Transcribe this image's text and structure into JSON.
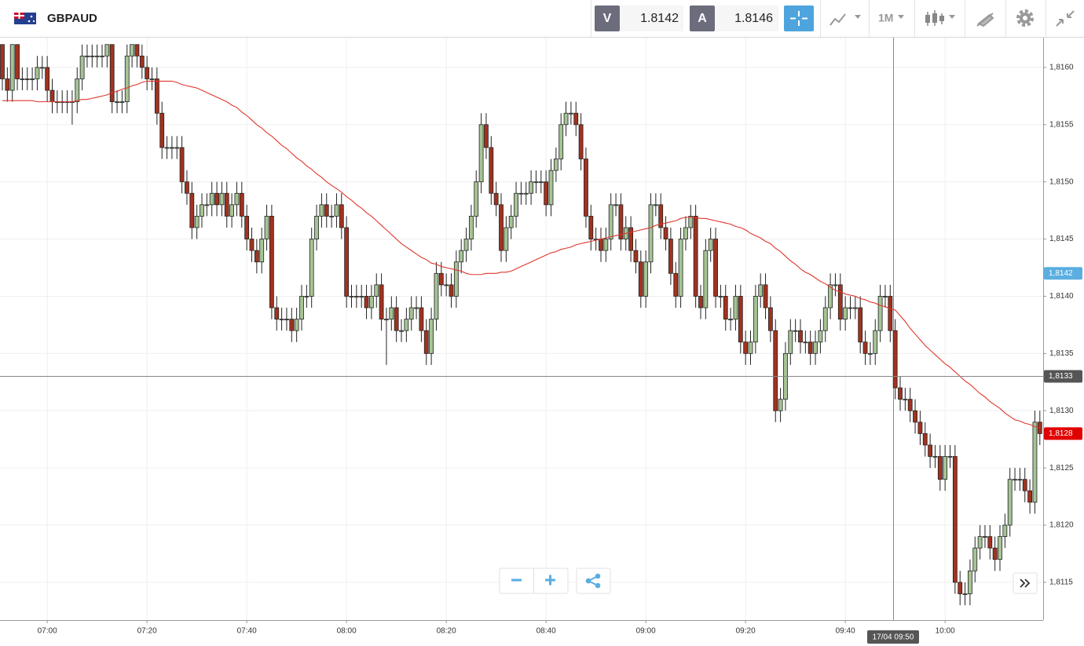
{
  "header": {
    "symbol": "GBPAUD",
    "bid_label": "V",
    "bid": 1.8142,
    "ask_label": "A",
    "ask": 1.8146,
    "timeframe": "1M"
  },
  "chart_data": {
    "type": "candlestick",
    "categories": [
      null,
      null,
      null,
      null,
      null,
      null,
      null,
      null,
      null,
      "07:00",
      null,
      null,
      null,
      null,
      null,
      null,
      null,
      null,
      null,
      null,
      null,
      null,
      null,
      null,
      null,
      null,
      null,
      null,
      null,
      "07:20",
      null,
      null,
      null,
      null,
      null,
      null,
      null,
      null,
      null,
      null,
      null,
      null,
      null,
      null,
      null,
      null,
      null,
      null,
      null,
      "07:40",
      null,
      null,
      null,
      null,
      null,
      null,
      null,
      null,
      null,
      null,
      null,
      null,
      null,
      null,
      null,
      null,
      null,
      null,
      null,
      "08:00",
      null,
      null,
      null,
      null,
      null,
      null,
      null,
      null,
      null,
      null,
      null,
      null,
      null,
      null,
      null,
      null,
      null,
      null,
      null,
      "08:20",
      null,
      null,
      null,
      null,
      null,
      null,
      null,
      null,
      null,
      null,
      null,
      null,
      null,
      null,
      null,
      null,
      null,
      null,
      null,
      "08:40",
      null,
      null,
      null,
      null,
      null,
      null,
      null,
      null,
      null,
      null,
      null,
      null,
      null,
      null,
      null,
      null,
      null,
      null,
      null,
      "09:00",
      null,
      null,
      null,
      null,
      null,
      null,
      null,
      null,
      null,
      null,
      null,
      null,
      null,
      null,
      null,
      null,
      null,
      null,
      null,
      "09:20",
      null,
      null,
      null,
      null,
      null,
      null,
      null,
      null,
      null,
      null,
      null,
      null,
      null,
      null,
      null,
      null,
      null,
      null,
      null,
      "09:40",
      null,
      null,
      null,
      null,
      null,
      null,
      null,
      null,
      null,
      null,
      null,
      null,
      null,
      null,
      null,
      null,
      null,
      null,
      null,
      "10:00",
      null,
      null,
      null,
      null,
      null,
      null,
      null,
      null,
      null,
      null,
      null,
      null,
      null,
      null,
      null,
      null,
      null,
      null,
      null
    ],
    "open": [
      1.8162,
      1.8159,
      1.8158,
      1.8162,
      1.8159,
      1.8159,
      1.8159,
      1.8159,
      1.816,
      1.816,
      1.8158,
      1.8157,
      1.8157,
      1.8157,
      1.8157,
      1.8157,
      1.8159,
      1.8161,
      1.8161,
      1.8161,
      1.8161,
      1.8161,
      1.8162,
      1.8157,
      1.8157,
      1.8157,
      1.8161,
      1.8162,
      1.8161,
      1.816,
      1.8159,
      1.8159,
      1.8156,
      1.8153,
      1.8153,
      1.8153,
      1.8153,
      1.815,
      1.8149,
      1.8146,
      1.8147,
      1.8148,
      1.8148,
      1.8149,
      1.8148,
      1.8149,
      1.8147,
      1.8148,
      1.8149,
      1.8147,
      1.8145,
      1.8144,
      1.8143,
      1.8145,
      1.8147,
      1.8139,
      1.8138,
      1.8138,
      1.8138,
      1.8137,
      1.8138,
      1.814,
      1.814,
      1.8145,
      1.8147,
      1.8148,
      1.8147,
      1.8147,
      1.8148,
      1.8146,
      1.814,
      1.814,
      1.814,
      1.814,
      1.8139,
      1.814,
      1.8141,
      1.8138,
      1.8138,
      1.8139,
      1.8137,
      1.8137,
      1.8138,
      1.8139,
      1.8139,
      1.8137,
      1.8135,
      1.8138,
      1.8142,
      1.8141,
      1.8141,
      1.814,
      1.8143,
      1.8144,
      1.8145,
      1.8147,
      1.815,
      1.8155,
      1.8153,
      1.8149,
      1.8148,
      1.8144,
      1.8146,
      1.8147,
      1.8149,
      1.8149,
      1.8149,
      1.815,
      1.815,
      1.815,
      1.8148,
      1.8151,
      1.8152,
      1.8155,
      1.8156,
      1.8156,
      1.8155,
      1.8152,
      1.8147,
      1.8145,
      1.8145,
      1.8144,
      1.8145,
      1.8148,
      1.8148,
      1.8145,
      1.8146,
      1.8144,
      1.8143,
      1.814,
      1.8143,
      1.8148,
      1.8148,
      1.8146,
      1.8145,
      1.8142,
      1.814,
      1.8145,
      1.8146,
      1.8147,
      1.814,
      1.8139,
      1.8144,
      1.8145,
      1.814,
      1.814,
      1.8138,
      1.8138,
      1.814,
      1.8136,
      1.8135,
      1.8136,
      1.814,
      1.8141,
      1.8139,
      1.8137,
      1.813,
      1.8131,
      1.8135,
      1.8137,
      1.8137,
      1.8136,
      1.8136,
      1.8135,
      1.8136,
      1.8137,
      1.8139,
      1.8141,
      1.8141,
      1.8138,
      1.8139,
      1.8139,
      1.8139,
      1.8136,
      1.8135,
      1.8135,
      1.8137,
      1.814,
      1.814,
      1.8137,
      1.8132,
      1.8131,
      1.8131,
      1.813,
      1.8129,
      1.8128,
      1.8127,
      1.8126,
      1.8126,
      1.8124,
      1.8126,
      1.8126,
      1.8115,
      1.8114,
      1.8114,
      1.8116,
      1.8118,
      1.8119,
      1.8119,
      1.8118,
      1.8117,
      1.8119,
      1.812,
      1.8124,
      1.8124,
      1.8124,
      1.8123,
      1.8122,
      1.8129
    ],
    "high": [
      1.8162,
      1.816,
      1.8162,
      1.8162,
      1.816,
      1.816,
      1.816,
      1.8161,
      1.8161,
      1.8161,
      1.8159,
      1.8158,
      1.8158,
      1.8158,
      1.8158,
      1.816,
      1.8162,
      1.8162,
      1.8162,
      1.8162,
      1.8162,
      1.8162,
      1.8162,
      1.8158,
      1.8158,
      1.8162,
      1.8162,
      1.8162,
      1.8162,
      1.8161,
      1.816,
      1.816,
      1.8157,
      1.8154,
      1.8154,
      1.8154,
      1.8154,
      1.8151,
      1.815,
      1.8148,
      1.8149,
      1.8149,
      1.815,
      1.815,
      1.815,
      1.815,
      1.8149,
      1.815,
      1.815,
      1.8148,
      1.8146,
      1.8145,
      1.8146,
      1.8148,
      1.8148,
      1.814,
      1.8139,
      1.8139,
      1.8139,
      1.8139,
      1.8141,
      1.8141,
      1.8146,
      1.8148,
      1.8149,
      1.8149,
      1.8148,
      1.8149,
      1.8149,
      1.8147,
      1.8141,
      1.8141,
      1.8141,
      1.8141,
      1.8141,
      1.8142,
      1.8142,
      1.8139,
      1.814,
      1.814,
      1.8138,
      1.8139,
      1.814,
      1.814,
      1.814,
      1.8138,
      1.8139,
      1.8143,
      1.8143,
      1.8142,
      1.8142,
      1.8144,
      1.8145,
      1.8146,
      1.8148,
      1.8151,
      1.8156,
      1.8156,
      1.8154,
      1.815,
      1.8149,
      1.8147,
      1.8148,
      1.815,
      1.815,
      1.815,
      1.8151,
      1.8151,
      1.8151,
      1.8151,
      1.8152,
      1.8153,
      1.8156,
      1.8157,
      1.8157,
      1.8157,
      1.8156,
      1.8153,
      1.8148,
      1.8146,
      1.8146,
      1.8146,
      1.8149,
      1.8149,
      1.8149,
      1.8147,
      1.8147,
      1.8145,
      1.8144,
      1.8144,
      1.8149,
      1.8149,
      1.8149,
      1.8147,
      1.8146,
      1.8143,
      1.8146,
      1.8147,
      1.8148,
      1.8148,
      1.8141,
      1.8145,
      1.8146,
      1.8146,
      1.8141,
      1.8141,
      1.8139,
      1.8141,
      1.8141,
      1.8137,
      1.8137,
      1.8141,
      1.8142,
      1.8142,
      1.814,
      1.8138,
      1.8132,
      1.8136,
      1.8138,
      1.8138,
      1.8138,
      1.8137,
      1.8137,
      1.8137,
      1.8138,
      1.814,
      1.8142,
      1.8142,
      1.8142,
      1.814,
      1.814,
      1.814,
      1.814,
      1.8137,
      1.8136,
      1.8138,
      1.8141,
      1.8141,
      1.8141,
      1.8138,
      1.8133,
      1.8132,
      1.8132,
      1.8131,
      1.813,
      1.8129,
      1.8128,
      1.8127,
      1.8127,
      1.8127,
      1.8127,
      1.8127,
      1.8116,
      1.8115,
      1.8117,
      1.8119,
      1.812,
      1.812,
      1.812,
      1.8119,
      1.812,
      1.8121,
      1.8125,
      1.8125,
      1.8125,
      1.8125,
      1.8124,
      1.813,
      1.813
    ],
    "low": [
      1.8158,
      1.8157,
      1.8157,
      1.8158,
      1.8158,
      1.8158,
      1.8158,
      1.8158,
      1.8159,
      1.8157,
      1.8156,
      1.8156,
      1.8156,
      1.8156,
      1.8155,
      1.8156,
      1.8158,
      1.816,
      1.816,
      1.816,
      1.816,
      1.816,
      1.8156,
      1.8156,
      1.8156,
      1.8156,
      1.816,
      1.816,
      1.8159,
      1.8158,
      1.8158,
      1.8155,
      1.8152,
      1.8152,
      1.8152,
      1.8152,
      1.8149,
      1.8148,
      1.8145,
      1.8145,
      1.8146,
      1.8147,
      1.8147,
      1.8147,
      1.8147,
      1.8146,
      1.8146,
      1.8147,
      1.8146,
      1.8144,
      1.8143,
      1.8142,
      1.8142,
      1.8144,
      1.8138,
      1.8137,
      1.8137,
      1.8137,
      1.8136,
      1.8136,
      1.8137,
      1.8139,
      1.8139,
      1.8144,
      1.8146,
      1.8146,
      1.8146,
      1.8146,
      1.8145,
      1.8139,
      1.8139,
      1.8139,
      1.8139,
      1.8138,
      1.8138,
      1.8139,
      1.8137,
      1.8134,
      1.8137,
      1.8136,
      1.8136,
      1.8136,
      1.8137,
      1.8138,
      1.8136,
      1.8134,
      1.8134,
      1.8137,
      1.814,
      1.814,
      1.8139,
      1.8139,
      1.8142,
      1.8143,
      1.8144,
      1.8146,
      1.8149,
      1.8152,
      1.8148,
      1.8147,
      1.8143,
      1.8143,
      1.8145,
      1.8146,
      1.8148,
      1.8148,
      1.8148,
      1.8149,
      1.8149,
      1.8147,
      1.8147,
      1.815,
      1.8151,
      1.8154,
      1.8155,
      1.8154,
      1.8151,
      1.8146,
      1.8144,
      1.8144,
      1.8143,
      1.8143,
      1.8144,
      1.8147,
      1.8144,
      1.8144,
      1.8143,
      1.8142,
      1.8139,
      1.8139,
      1.8142,
      1.8147,
      1.8145,
      1.8144,
      1.8141,
      1.8139,
      1.8139,
      1.8144,
      1.8145,
      1.8139,
      1.8138,
      1.8138,
      1.8143,
      1.8139,
      1.8139,
      1.8137,
      1.8137,
      1.8137,
      1.8135,
      1.8134,
      1.8134,
      1.8135,
      1.8139,
      1.8138,
      1.8136,
      1.8129,
      1.8129,
      1.813,
      1.8134,
      1.8136,
      1.8135,
      1.8135,
      1.8134,
      1.8134,
      1.8135,
      1.8136,
      1.8138,
      1.814,
      1.8137,
      1.8137,
      1.8138,
      1.8138,
      1.8135,
      1.8134,
      1.8134,
      1.8134,
      1.8136,
      1.8139,
      1.8136,
      1.8131,
      1.813,
      1.813,
      1.8129,
      1.8128,
      1.8127,
      1.8126,
      1.8125,
      1.8125,
      1.8123,
      1.8123,
      1.8125,
      1.8114,
      1.8113,
      1.8113,
      1.8113,
      1.8115,
      1.8117,
      1.8118,
      1.8117,
      1.8116,
      1.8116,
      1.8118,
      1.8119,
      1.8123,
      1.8123,
      1.8122,
      1.8121,
      1.8121,
      1.8127
    ],
    "close": [
      1.8159,
      1.8158,
      1.8162,
      1.8159,
      1.8159,
      1.8159,
      1.8159,
      1.816,
      1.816,
      1.8158,
      1.8157,
      1.8157,
      1.8157,
      1.8157,
      1.8157,
      1.8159,
      1.8161,
      1.8161,
      1.8161,
      1.8161,
      1.8161,
      1.8162,
      1.8157,
      1.8157,
      1.8157,
      1.8161,
      1.8162,
      1.8161,
      1.816,
      1.8159,
      1.8159,
      1.8156,
      1.8153,
      1.8153,
      1.8153,
      1.8153,
      1.815,
      1.8149,
      1.8146,
      1.8147,
      1.8148,
      1.8148,
      1.8149,
      1.8148,
      1.8149,
      1.8147,
      1.8148,
      1.8149,
      1.8147,
      1.8145,
      1.8144,
      1.8143,
      1.8145,
      1.8147,
      1.8139,
      1.8138,
      1.8138,
      1.8138,
      1.8137,
      1.8138,
      1.814,
      1.814,
      1.8145,
      1.8147,
      1.8148,
      1.8147,
      1.8147,
      1.8148,
      1.8146,
      1.814,
      1.814,
      1.814,
      1.814,
      1.8139,
      1.814,
      1.8141,
      1.8138,
      1.8138,
      1.8139,
      1.8137,
      1.8137,
      1.8138,
      1.8139,
      1.8139,
      1.8137,
      1.8135,
      1.8138,
      1.8142,
      1.8141,
      1.8141,
      1.814,
      1.8143,
      1.8144,
      1.8145,
      1.8147,
      1.815,
      1.8155,
      1.8153,
      1.8149,
      1.8148,
      1.8144,
      1.8146,
      1.8147,
      1.8149,
      1.8149,
      1.8149,
      1.815,
      1.815,
      1.815,
      1.8148,
      1.8151,
      1.8152,
      1.8155,
      1.8156,
      1.8156,
      1.8155,
      1.8152,
      1.8147,
      1.8145,
      1.8145,
      1.8144,
      1.8145,
      1.8148,
      1.8148,
      1.8145,
      1.8146,
      1.8144,
      1.8143,
      1.814,
      1.8143,
      1.8148,
      1.8148,
      1.8146,
      1.8145,
      1.8142,
      1.814,
      1.8145,
      1.8146,
      1.8147,
      1.814,
      1.8139,
      1.8144,
      1.8145,
      1.814,
      1.814,
      1.8138,
      1.8138,
      1.814,
      1.8136,
      1.8135,
      1.8136,
      1.814,
      1.8141,
      1.8139,
      1.8137,
      1.813,
      1.8131,
      1.8135,
      1.8137,
      1.8137,
      1.8136,
      1.8136,
      1.8135,
      1.8136,
      1.8137,
      1.8139,
      1.8141,
      1.8141,
      1.8138,
      1.8139,
      1.8139,
      1.8139,
      1.8136,
      1.8135,
      1.8135,
      1.8137,
      1.814,
      1.814,
      1.8137,
      1.8132,
      1.8131,
      1.8131,
      1.813,
      1.8129,
      1.8128,
      1.8127,
      1.8126,
      1.8126,
      1.8124,
      1.8126,
      1.8126,
      1.8115,
      1.8114,
      1.8114,
      1.8116,
      1.8118,
      1.8119,
      1.8119,
      1.8118,
      1.8117,
      1.8119,
      1.812,
      1.8124,
      1.8124,
      1.8124,
      1.8123,
      1.8122,
      1.8129,
      1.8128
    ],
    "up_color": "#a6c495",
    "down_color": "#a2321f",
    "moving_average": {
      "color": "#e0362c",
      "values": [
        1.81571,
        1.81571,
        1.81571,
        1.81571,
        1.81571,
        1.81571,
        1.81571,
        1.8157,
        1.8157,
        1.8157,
        1.8157,
        1.8157,
        1.8157,
        1.8157,
        1.8157,
        1.81571,
        1.81572,
        1.81572,
        1.81573,
        1.81574,
        1.81575,
        1.81576,
        1.81578,
        1.81579,
        1.81581,
        1.81582,
        1.81584,
        1.81585,
        1.81587,
        1.81588,
        1.81588,
        1.81588,
        1.81588,
        1.81588,
        1.81588,
        1.81587,
        1.81585,
        1.81584,
        1.81583,
        1.81582,
        1.8158,
        1.81578,
        1.81576,
        1.81574,
        1.81572,
        1.8157,
        1.81567,
        1.81565,
        1.81561,
        1.81558,
        1.81554,
        1.8155,
        1.81547,
        1.81543,
        1.8154,
        1.81536,
        1.81532,
        1.81529,
        1.81525,
        1.81521,
        1.81518,
        1.81514,
        1.81511,
        1.81507,
        1.81504,
        1.815,
        1.81497,
        1.81494,
        1.81491,
        1.81487,
        1.81484,
        1.8148,
        1.81477,
        1.81473,
        1.8147,
        1.81466,
        1.81462,
        1.81458,
        1.81454,
        1.8145,
        1.81446,
        1.81443,
        1.8144,
        1.81437,
        1.81434,
        1.81432,
        1.81429,
        1.81428,
        1.81426,
        1.81425,
        1.81424,
        1.81423,
        1.81422,
        1.8142,
        1.81419,
        1.81419,
        1.81419,
        1.8142,
        1.8142,
        1.8142,
        1.81421,
        1.81421,
        1.81422,
        1.81424,
        1.81426,
        1.81428,
        1.8143,
        1.81432,
        1.81434,
        1.81436,
        1.81438,
        1.81439,
        1.81441,
        1.81442,
        1.81443,
        1.81445,
        1.81446,
        1.81447,
        1.81448,
        1.81449,
        1.8145,
        1.81451,
        1.81452,
        1.81453,
        1.81454,
        1.81455,
        1.81456,
        1.81457,
        1.81458,
        1.81459,
        1.8146,
        1.81462,
        1.81463,
        1.81464,
        1.81465,
        1.81466,
        1.81468,
        1.81469,
        1.81469,
        1.81469,
        1.81468,
        1.81468,
        1.81467,
        1.81466,
        1.81465,
        1.81464,
        1.81463,
        1.81461,
        1.8146,
        1.81458,
        1.81455,
        1.81453,
        1.81451,
        1.81448,
        1.81446,
        1.81442,
        1.81439,
        1.81435,
        1.81431,
        1.81428,
        1.81424,
        1.81421,
        1.81419,
        1.81416,
        1.81413,
        1.81411,
        1.81408,
        1.81405,
        1.81404,
        1.81402,
        1.81401,
        1.814,
        1.81398,
        1.81397,
        1.81395,
        1.81394,
        1.81392,
        1.81391,
        1.81389,
        1.81388,
        1.81383,
        1.81378,
        1.81372,
        1.81367,
        1.81362,
        1.81357,
        1.81353,
        1.81349,
        1.81345,
        1.81341,
        1.81338,
        1.81334,
        1.8133,
        1.81326,
        1.81323,
        1.81319,
        1.81315,
        1.81312,
        1.81308,
        1.81305,
        1.81302,
        1.81298,
        1.81295,
        1.81292,
        1.81291,
        1.81289,
        1.81288,
        1.81286,
        1.81285
      ]
    },
    "ylim": [
      1.81117,
      1.81626
    ],
    "yticks": [
      {
        "value": 1.8115,
        "label": "1,8115"
      },
      {
        "value": 1.812,
        "label": "1,8120"
      },
      {
        "value": 1.8125,
        "label": "1,8125"
      },
      {
        "value": 1.813,
        "label": "1,8130"
      },
      {
        "value": 1.8135,
        "label": "1,8135"
      },
      {
        "value": 1.814,
        "label": "1,8140"
      },
      {
        "value": 1.8145,
        "label": "1,8145"
      },
      {
        "value": 1.815,
        "label": "1,8150"
      },
      {
        "value": 1.8155,
        "label": "1,8155"
      },
      {
        "value": 1.816,
        "label": "1,8160"
      }
    ],
    "grid": true,
    "price_tags": [
      {
        "value": 1.8142,
        "label": "1,8142",
        "color": "#5aaee0",
        "line": false
      },
      {
        "value": 1.8133,
        "label": "1,8133",
        "color": "#555555",
        "line": true
      },
      {
        "value": 1.8128,
        "label": "1,8128",
        "color": "#e00000",
        "line": false
      }
    ],
    "crosshair_label": "17/04 09:50"
  }
}
